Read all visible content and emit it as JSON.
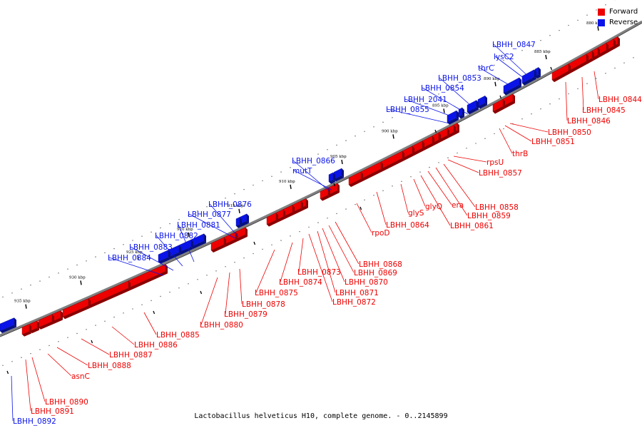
{
  "legend": [
    {
      "label": "Forward",
      "color": "#ee0000"
    },
    {
      "label": "Reverse",
      "color": "#0a14e8"
    }
  ],
  "caption": "Lactobacillus helveticus H10, complete genome. - 0..2145899",
  "colors": {
    "forward": "#ee0000",
    "reverse": "#0a14e8",
    "backbone": "#808080"
  },
  "ticks": [
    {
      "label": "880 kbp"
    },
    {
      "label": "885 kbp"
    },
    {
      "label": "890 kbp"
    },
    {
      "label": "895 kbp"
    },
    {
      "label": "900 kbp"
    },
    {
      "label": "905 kbp"
    },
    {
      "label": "910 kbp"
    },
    {
      "label": "915 kbp"
    },
    {
      "label": "920 kbp"
    },
    {
      "label": "925 kbp"
    },
    {
      "label": "930 kbp"
    },
    {
      "label": "935 kbp"
    }
  ],
  "genes": [
    {
      "label": "LBHH_0844",
      "strand": "forward"
    },
    {
      "label": "LBHH_0845",
      "strand": "forward"
    },
    {
      "label": "LBHH_0846",
      "strand": "forward"
    },
    {
      "label": "LBHH_0847",
      "strand": "reverse"
    },
    {
      "label": "lysC2",
      "strand": "reverse"
    },
    {
      "label": "thrC",
      "strand": "reverse"
    },
    {
      "label": "LBHH_0850",
      "strand": "forward"
    },
    {
      "label": "LBHH_0851",
      "strand": "forward"
    },
    {
      "label": "thrB",
      "strand": "forward"
    },
    {
      "label": "LBHH_0853",
      "strand": "reverse"
    },
    {
      "label": "LBHH_0854",
      "strand": "reverse"
    },
    {
      "label": "LBHH_2041",
      "strand": "reverse"
    },
    {
      "label": "LBHH_0855",
      "strand": "reverse"
    },
    {
      "label": "rpsU",
      "strand": "forward"
    },
    {
      "label": "LBHH_0857",
      "strand": "forward"
    },
    {
      "label": "LBHH_0858",
      "strand": "forward"
    },
    {
      "label": "LBHH_0859",
      "strand": "forward"
    },
    {
      "label": "era",
      "strand": "forward"
    },
    {
      "label": "LBHH_0861",
      "strand": "forward"
    },
    {
      "label": "glyQ",
      "strand": "forward"
    },
    {
      "label": "glyS",
      "strand": "forward"
    },
    {
      "label": "LBHH_0864",
      "strand": "forward"
    },
    {
      "label": "rpoD",
      "strand": "forward"
    },
    {
      "label": "LBHH_0866",
      "strand": "reverse"
    },
    {
      "label": "mutT",
      "strand": "reverse"
    },
    {
      "label": "LBHH_0868",
      "strand": "forward"
    },
    {
      "label": "LBHH_0869",
      "strand": "forward"
    },
    {
      "label": "LBHH_0870",
      "strand": "forward"
    },
    {
      "label": "LBHH_0871",
      "strand": "forward"
    },
    {
      "label": "LBHH_0872",
      "strand": "forward"
    },
    {
      "label": "LBHH_0873",
      "strand": "forward"
    },
    {
      "label": "LBHH_0874",
      "strand": "forward"
    },
    {
      "label": "LBHH_0875",
      "strand": "forward"
    },
    {
      "label": "LBHH_0876",
      "strand": "reverse"
    },
    {
      "label": "LBHH_0877",
      "strand": "reverse"
    },
    {
      "label": "LBHH_0878",
      "strand": "forward"
    },
    {
      "label": "LBHH_0879",
      "strand": "forward"
    },
    {
      "label": "LBHH_0880",
      "strand": "forward"
    },
    {
      "label": "LBHH_0881",
      "strand": "reverse"
    },
    {
      "label": "LBHH_0882",
      "strand": "reverse"
    },
    {
      "label": "LBHH_0883",
      "strand": "reverse"
    },
    {
      "label": "LBHH_0884",
      "strand": "reverse"
    },
    {
      "label": "LBHH_0885",
      "strand": "forward"
    },
    {
      "label": "LBHH_0886",
      "strand": "forward"
    },
    {
      "label": "LBHH_0887",
      "strand": "forward"
    },
    {
      "label": "LBHH_0888",
      "strand": "forward"
    },
    {
      "label": "asnC",
      "strand": "forward"
    },
    {
      "label": "LBHH_0890",
      "strand": "forward"
    },
    {
      "label": "LBHH_0891",
      "strand": "forward"
    },
    {
      "label": "LBHH_0892",
      "strand": "reverse"
    }
  ]
}
